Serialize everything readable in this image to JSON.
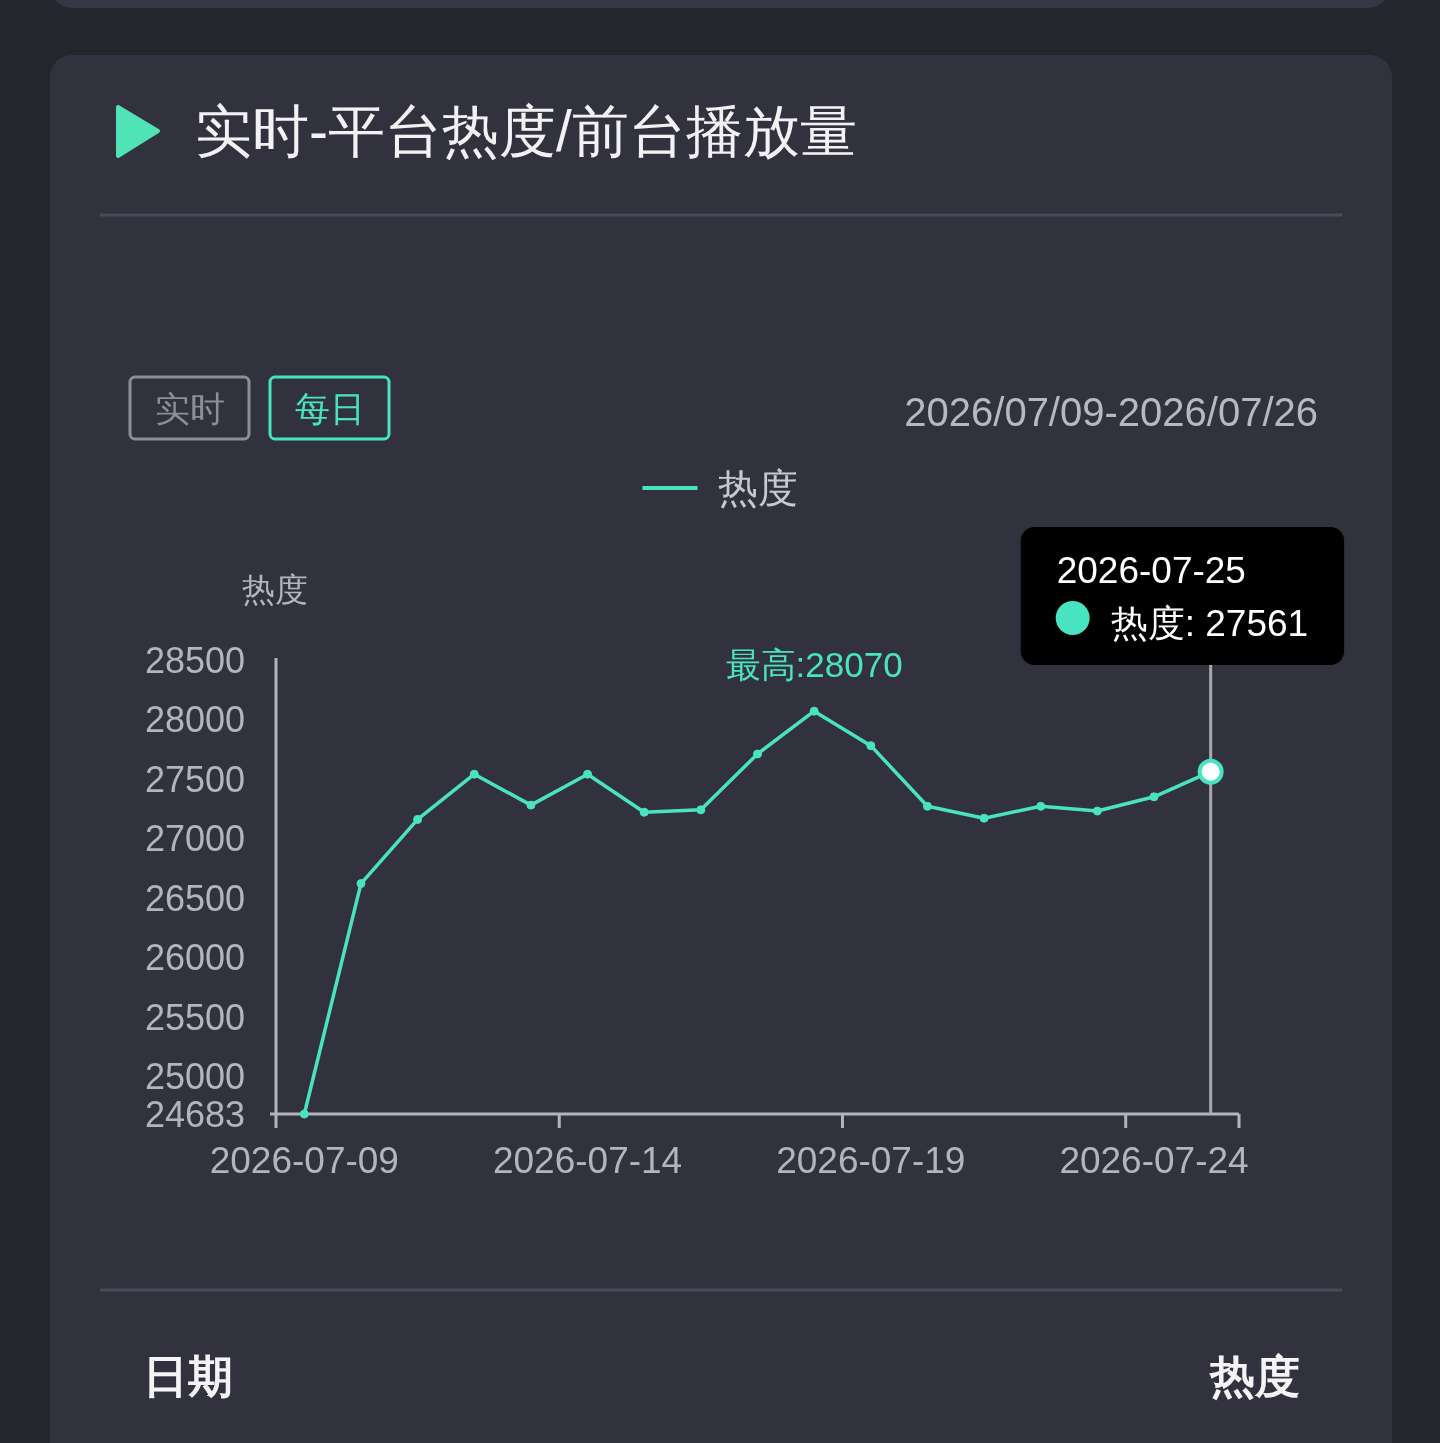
{
  "chart_data": {
    "type": "line",
    "title": "实时-平台热度/前台播放量",
    "subtitle": "2026/07/09-2026/07/26",
    "ylabel": "热度",
    "categories": [
      "2026-07-09",
      null,
      null,
      null,
      null,
      "2026-07-14",
      null,
      null,
      null,
      null,
      "2026-07-19",
      null,
      null,
      null,
      null,
      "2026-07-24",
      null
    ],
    "series": [
      {
        "name": "热度",
        "color": "#48e4c2",
        "values": [
          24683,
          26620,
          27160,
          27540,
          27280,
          27540,
          27220,
          27240,
          27710,
          28070,
          27780,
          27270,
          27170,
          27270,
          27230,
          27350,
          27561
        ]
      }
    ],
    "ylim": [
      24683,
      28500
    ],
    "yticks": [
      24683,
      25000,
      25500,
      26000,
      26500,
      27000,
      27500,
      28000,
      28500
    ],
    "legend": "top",
    "marker": "circle",
    "line_style": "solid",
    "annotations": [
      {
        "text": "最高:28070",
        "y": 28070
      },
      "2026-07-25",
      "热度: 27561",
      "实时",
      "每日",
      "日期",
      "热度"
    ]
  }
}
